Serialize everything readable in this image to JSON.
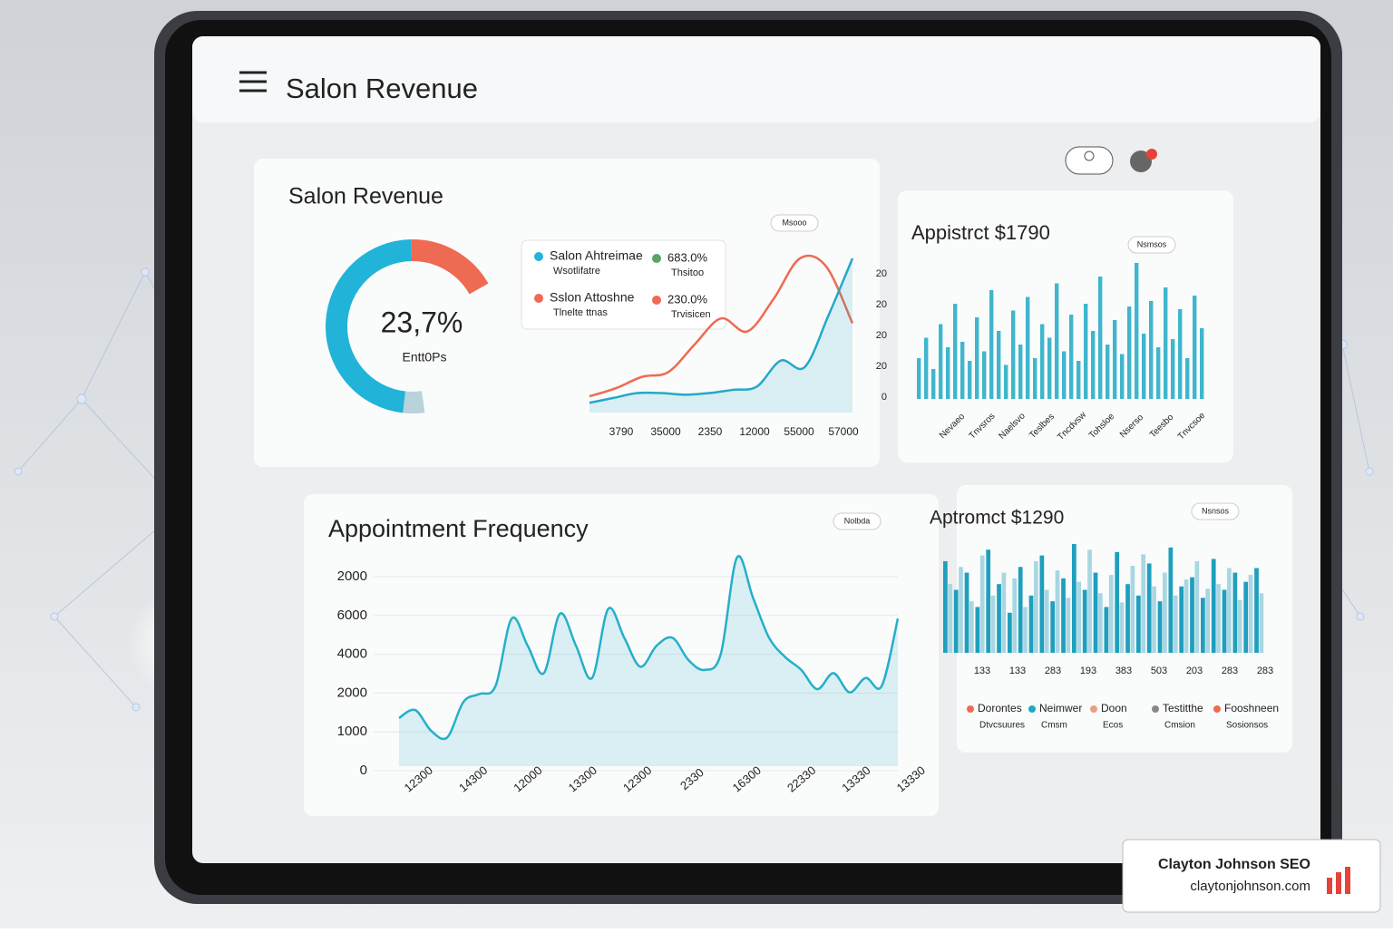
{
  "header": {
    "title": "Salon Revenue"
  },
  "revenue_card": {
    "title": "Salon Revenue",
    "badge": "Msooo",
    "donut": {
      "center_value": "23,7%",
      "center_label": "Entt0Ps",
      "segments": [
        {
          "value": 4,
          "color": "#b8d3dc"
        },
        {
          "value": 48,
          "color": "#22b3d9"
        },
        {
          "value": 17,
          "color": "#ef6a52"
        }
      ]
    },
    "legend": [
      {
        "name": "Salon Ahtreimae",
        "sub": "Wsotlifatre",
        "value": "683.0%",
        "value_sub": "Thsitoo",
        "color": "#22b3d9",
        "value_color": "#5aa36a"
      },
      {
        "name": "Sslon Attoshne",
        "sub": "Tlnelte ttnas",
        "value": "230.0%",
        "value_sub": "Trvisicen",
        "color": "#ef6a52",
        "value_color": "#ef6a52"
      }
    ],
    "line": {
      "x_labels": [
        "3790",
        "35000",
        "2350",
        "12000",
        "55000",
        "57000"
      ],
      "series": [
        {
          "color": "#ef6a52",
          "fill": false,
          "values": [
            10,
            15,
            22,
            25,
            42,
            58,
            50,
            70,
            95,
            90,
            55
          ]
        },
        {
          "color": "#22a9c9",
          "fill": true,
          "values": [
            6,
            9,
            12,
            12,
            11,
            12,
            14,
            16,
            32,
            28,
            60,
            95
          ]
        }
      ]
    }
  },
  "appistrct_card": {
    "title": "Appistrct $1790",
    "badge": "Nsmsos",
    "y_labels": [
      "20",
      "20",
      "20",
      "20",
      "0"
    ],
    "x_labels": [
      "Nevaeo",
      "Tnvsros",
      "Naelsvo",
      "Teslbes",
      "Tncdvsw",
      "Tohsloe",
      "Nserso",
      "Teesbo",
      "Tnvcsoe"
    ],
    "color": "#1fa9c4",
    "values": [
      30,
      45,
      22,
      55,
      38,
      70,
      42,
      28,
      60,
      35,
      80,
      50,
      25,
      65,
      40,
      75,
      30,
      55,
      45,
      85,
      35,
      62,
      28,
      70,
      50,
      90,
      40,
      58,
      33,
      68,
      100,
      48,
      72,
      38,
      82,
      44,
      66,
      30,
      76,
      52
    ]
  },
  "frequency_card": {
    "title": "Appointment Frequency",
    "badge": "Nolbda",
    "y_labels": [
      "2000",
      "6000",
      "4000",
      "2000",
      "1000",
      "0"
    ],
    "x_labels": [
      "12300",
      "14300",
      "12000",
      "13300",
      "12300",
      "2330",
      "16300",
      "22330",
      "13330",
      "13330"
    ],
    "color": "#25afca",
    "values": [
      30,
      35,
      22,
      18,
      40,
      45,
      50,
      92,
      75,
      58,
      95,
      75,
      55,
      98,
      80,
      62,
      75,
      80,
      66,
      60,
      70,
      130,
      105,
      80,
      68,
      60,
      48,
      58,
      46,
      55,
      50,
      92
    ]
  },
  "aptromct_card": {
    "title": "Aptromct $1290",
    "badge": "Nsnsos",
    "x_labels": [
      "133",
      "133",
      "283",
      "193",
      "383",
      "503",
      "203",
      "283",
      "283"
    ],
    "series": [
      {
        "color": "#1f9fbd",
        "values": [
          80,
          55,
          70,
          40,
          90,
          60,
          35,
          75,
          50,
          85,
          45,
          65,
          95,
          55,
          70,
          40,
          88,
          60,
          50,
          78,
          45,
          92,
          58,
          66,
          48,
          82,
          55,
          70,
          62,
          74
        ]
      },
      {
        "color": "#a9d6e2",
        "values": [
          60,
          75,
          45,
          85,
          50,
          70,
          65,
          40,
          80,
          55,
          72,
          48,
          62,
          90,
          52,
          68,
          44,
          76,
          86,
          58,
          70,
          50,
          64,
          80,
          56,
          60,
          74,
          46,
          68,
          52
        ]
      }
    ],
    "legend": [
      {
        "name": "Dorontes",
        "sub": "Dtvcsuures",
        "color": "#ef6a52"
      },
      {
        "name": "Neimwer",
        "sub": "Cmsm",
        "color": "#1fa9c4"
      },
      {
        "name": "Doon",
        "sub": "Ecos",
        "color": "#e8a080"
      },
      {
        "name": "Testitthe",
        "sub": "Cmsion",
        "color": "#888888"
      },
      {
        "name": "Fooshneen",
        "sub": "Sosionsos",
        "color": "#ef6a52"
      }
    ]
  },
  "watermark": {
    "title": "Clayton Johnson SEO",
    "url": "claytonjohnson.com"
  }
}
